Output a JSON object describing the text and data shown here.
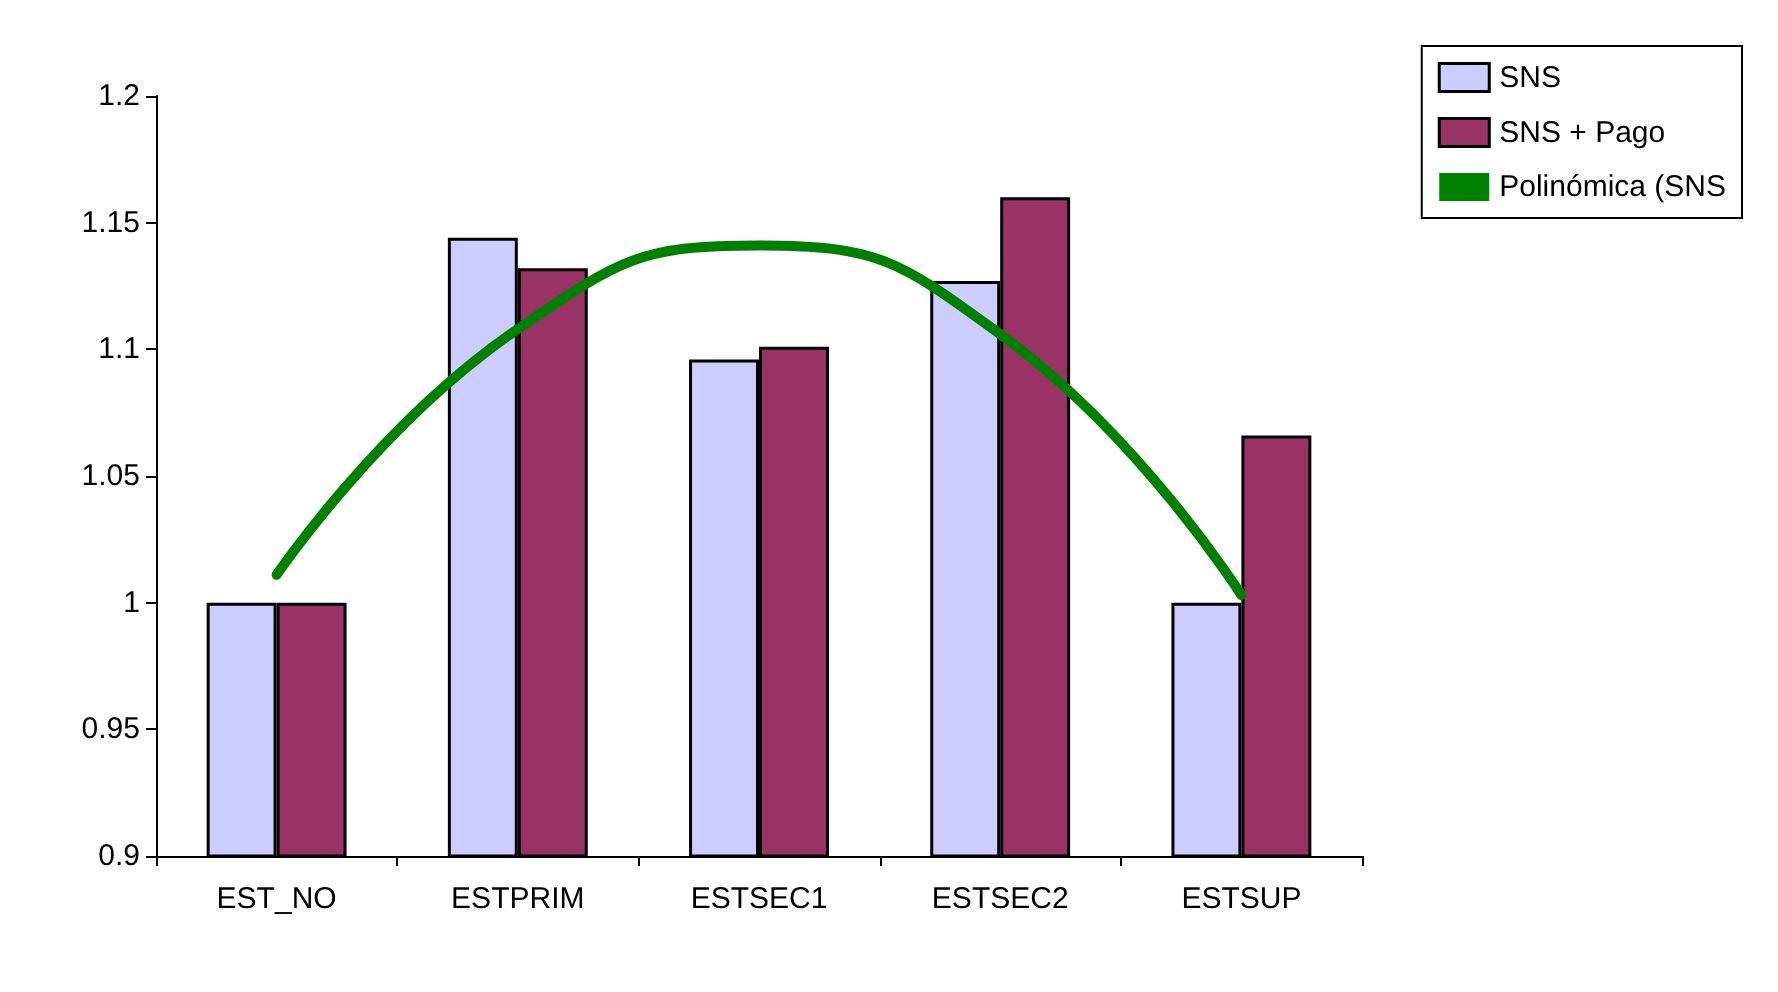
{
  "chart_data": {
    "type": "bar",
    "categories": [
      "EST_NO",
      "ESTPRIM",
      "ESTSEC1",
      "ESTSEC2",
      "ESTSUP"
    ],
    "series": [
      {
        "name": "SNS",
        "color": "#ccccff",
        "values": [
          1.0,
          1.144,
          1.096,
          1.127,
          1.0
        ]
      },
      {
        "name": "SNS + Pago",
        "color": "#993366",
        "values": [
          1.0,
          1.132,
          1.101,
          1.16,
          1.066
        ]
      },
      {
        "name": "Polinómica (SNS",
        "type": "line",
        "color": "#008000",
        "values": [
          1.011,
          1.108,
          1.141,
          1.106,
          1.003
        ]
      }
    ],
    "ylim": [
      0.9,
      1.2
    ],
    "yticks": [
      0.9,
      0.95,
      1,
      1.05,
      1.1,
      1.15,
      1.2
    ],
    "grid": false,
    "legend": "top right",
    "marker": "none",
    "line_style": "solid"
  }
}
